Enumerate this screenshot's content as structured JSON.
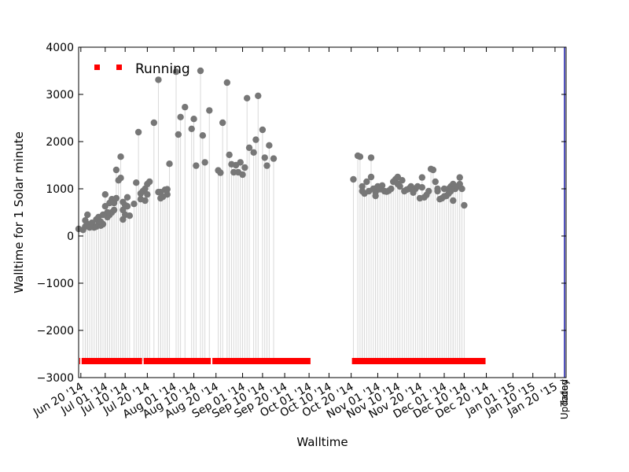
{
  "chart_data": {
    "type": "scatter",
    "title": "",
    "xlabel": "Walltime",
    "ylabel": "Walltime for 1 Solar minute",
    "xlim": [
      "2014-06-19",
      "2015-01-25"
    ],
    "ylim": [
      -3000,
      4000
    ],
    "yticks": [
      -3000,
      -2000,
      -1000,
      0,
      1000,
      2000,
      3000,
      4000
    ],
    "yticklabels": [
      "−3000",
      "−2000",
      "−1000",
      "0",
      "1000",
      "2000",
      "3000",
      "4000"
    ],
    "xticks": [
      "2014-06-20",
      "2014-07-01",
      "2014-07-10",
      "2014-07-20",
      "2014-08-01",
      "2014-08-10",
      "2014-08-20",
      "2014-09-01",
      "2014-09-10",
      "2014-09-20",
      "2014-10-01",
      "2014-10-10",
      "2014-10-20",
      "2014-11-01",
      "2014-11-10",
      "2014-11-20",
      "2014-12-01",
      "2014-12-10",
      "2014-12-20",
      "2015-01-01",
      "2015-01-10",
      "2015-01-20"
    ],
    "xticklabels": [
      "Jun 20 '14",
      "Jul 01 '14",
      "Jul 10 '14",
      "Jul 20 '14",
      "Aug 01 '14",
      "Aug 10 '14",
      "Aug 20 '14",
      "Sep 01 '14",
      "Sep 10 '14",
      "Sep 20 '14",
      "Oct 01 '14",
      "Oct 10 '14",
      "Oct 20 '14",
      "Nov 01 '14",
      "Nov 10 '14",
      "Nov 20 '14",
      "Dec 01 '14",
      "Dec 10 '14",
      "Dec 20 '14",
      "Jan 01 '15",
      "Jan 10 '15",
      "Jan 20 '15"
    ],
    "grid": false,
    "legend": {
      "entries": [
        {
          "name": "Running",
          "color": "#ff0000"
        }
      ],
      "placement": "top-left"
    },
    "annotations": [
      {
        "text": "Today",
        "x": "2015-01-25"
      },
      {
        "text": "Updated",
        "x": "2015-01-25"
      }
    ],
    "colors": {
      "points": "#777777",
      "stems": "#d9d9d9",
      "running": "#ff0000",
      "today_line": "#1a1aaa"
    },
    "running_y": -2650,
    "running_periods": [
      [
        "2014-06-19",
        "2014-06-20"
      ],
      [
        "2014-06-20",
        "2014-07-18"
      ],
      [
        "2014-07-18",
        "2014-08-18"
      ],
      [
        "2014-08-18",
        "2014-10-02"
      ],
      [
        "2014-10-20",
        "2014-12-20"
      ]
    ],
    "series": [
      {
        "name": "Running",
        "points": [
          [
            "2014-06-19",
            150
          ],
          [
            "2014-06-21",
            130
          ],
          [
            "2014-06-22",
            200
          ],
          [
            "2014-06-22",
            330
          ],
          [
            "2014-06-23",
            250
          ],
          [
            "2014-06-23",
            450
          ],
          [
            "2014-06-24",
            180
          ],
          [
            "2014-06-25",
            280
          ],
          [
            "2014-06-25",
            200
          ],
          [
            "2014-06-26",
            180
          ],
          [
            "2014-06-27",
            350
          ],
          [
            "2014-06-27",
            200
          ],
          [
            "2014-06-28",
            400
          ],
          [
            "2014-06-28",
            250
          ],
          [
            "2014-06-29",
            220
          ],
          [
            "2014-06-29",
            300
          ],
          [
            "2014-06-30",
            450
          ],
          [
            "2014-06-30",
            250
          ],
          [
            "2014-07-01",
            630
          ],
          [
            "2014-07-01",
            880
          ],
          [
            "2014-07-02",
            500
          ],
          [
            "2014-07-02",
            400
          ],
          [
            "2014-07-03",
            700
          ],
          [
            "2014-07-03",
            450
          ],
          [
            "2014-07-04",
            780
          ],
          [
            "2014-07-04",
            500
          ],
          [
            "2014-07-05",
            700
          ],
          [
            "2014-07-05",
            550
          ],
          [
            "2014-07-06",
            1400
          ],
          [
            "2014-07-06",
            800
          ],
          [
            "2014-07-07",
            1180
          ],
          [
            "2014-07-08",
            1680
          ],
          [
            "2014-07-08",
            1230
          ],
          [
            "2014-07-09",
            720
          ],
          [
            "2014-07-09",
            550
          ],
          [
            "2014-07-09",
            350
          ],
          [
            "2014-07-10",
            650
          ],
          [
            "2014-07-10",
            450
          ],
          [
            "2014-07-11",
            820
          ],
          [
            "2014-07-11",
            630
          ],
          [
            "2014-07-12",
            430
          ],
          [
            "2014-07-14",
            680
          ],
          [
            "2014-07-15",
            1130
          ],
          [
            "2014-07-16",
            2200
          ],
          [
            "2014-07-17",
            900
          ],
          [
            "2014-07-17",
            780
          ],
          [
            "2014-07-18",
            950
          ],
          [
            "2014-07-19",
            750
          ],
          [
            "2014-07-19",
            1000
          ],
          [
            "2014-07-20",
            880
          ],
          [
            "2014-07-20",
            1100
          ],
          [
            "2014-07-21",
            1150
          ],
          [
            "2014-07-23",
            2400
          ],
          [
            "2014-07-25",
            3310
          ],
          [
            "2014-07-25",
            930
          ],
          [
            "2014-07-26",
            800
          ],
          [
            "2014-07-26",
            930
          ],
          [
            "2014-07-27",
            830
          ],
          [
            "2014-07-28",
            980
          ],
          [
            "2014-07-29",
            990
          ],
          [
            "2014-07-29",
            880
          ],
          [
            "2014-07-30",
            1530
          ],
          [
            "2014-08-02",
            3480
          ],
          [
            "2014-08-03",
            2150
          ],
          [
            "2014-08-04",
            2520
          ],
          [
            "2014-08-06",
            2730
          ],
          [
            "2014-08-09",
            2270
          ],
          [
            "2014-08-10",
            2480
          ],
          [
            "2014-08-11",
            1490
          ],
          [
            "2014-08-13",
            3500
          ],
          [
            "2014-08-14",
            2130
          ],
          [
            "2014-08-15",
            1560
          ],
          [
            "2014-08-17",
            2660
          ],
          [
            "2014-08-21",
            1390
          ],
          [
            "2014-08-22",
            1340
          ],
          [
            "2014-08-23",
            2400
          ],
          [
            "2014-08-25",
            3250
          ],
          [
            "2014-08-26",
            1720
          ],
          [
            "2014-08-27",
            1520
          ],
          [
            "2014-08-28",
            1350
          ],
          [
            "2014-08-29",
            1500
          ],
          [
            "2014-08-30",
            1350
          ],
          [
            "2014-08-31",
            1560
          ],
          [
            "2014-09-01",
            1300
          ],
          [
            "2014-09-02",
            1450
          ],
          [
            "2014-09-03",
            2920
          ],
          [
            "2014-09-04",
            1870
          ],
          [
            "2014-09-06",
            1770
          ],
          [
            "2014-09-07",
            2040
          ],
          [
            "2014-09-08",
            2970
          ],
          [
            "2014-09-10",
            2250
          ],
          [
            "2014-09-11",
            1660
          ],
          [
            "2014-09-12",
            1490
          ],
          [
            "2014-09-13",
            1920
          ],
          [
            "2014-09-15",
            1640
          ],
          [
            "2014-10-21",
            1200
          ],
          [
            "2014-10-23",
            1700
          ],
          [
            "2014-10-24",
            1680
          ],
          [
            "2014-10-25",
            1050
          ],
          [
            "2014-10-25",
            950
          ],
          [
            "2014-10-26",
            900
          ],
          [
            "2014-10-27",
            1150
          ],
          [
            "2014-10-28",
            950
          ],
          [
            "2014-10-29",
            1660
          ],
          [
            "2014-10-29",
            1250
          ],
          [
            "2014-10-30",
            1000
          ],
          [
            "2014-10-31",
            930
          ],
          [
            "2014-10-31",
            850
          ],
          [
            "2014-11-01",
            1050
          ],
          [
            "2014-11-02",
            990
          ],
          [
            "2014-11-03",
            1070
          ],
          [
            "2014-11-04",
            950
          ],
          [
            "2014-11-05",
            940
          ],
          [
            "2014-11-06",
            960
          ],
          [
            "2014-11-07",
            1000
          ],
          [
            "2014-11-08",
            1150
          ],
          [
            "2014-11-09",
            1200
          ],
          [
            "2014-11-10",
            1100
          ],
          [
            "2014-11-10",
            1250
          ],
          [
            "2014-11-11",
            1050
          ],
          [
            "2014-11-12",
            1180
          ],
          [
            "2014-11-13",
            950
          ],
          [
            "2014-11-14",
            980
          ],
          [
            "2014-11-15",
            1000
          ],
          [
            "2014-11-16",
            1050
          ],
          [
            "2014-11-17",
            920
          ],
          [
            "2014-11-18",
            1000
          ],
          [
            "2014-11-19",
            1050
          ],
          [
            "2014-11-20",
            800
          ],
          [
            "2014-11-21",
            1030
          ],
          [
            "2014-11-21",
            1240
          ],
          [
            "2014-11-22",
            820
          ],
          [
            "2014-11-23",
            870
          ],
          [
            "2014-11-24",
            950
          ],
          [
            "2014-11-25",
            1420
          ],
          [
            "2014-11-26",
            1400
          ],
          [
            "2014-11-27",
            1150
          ],
          [
            "2014-11-28",
            950
          ],
          [
            "2014-11-28",
            1000
          ],
          [
            "2014-11-29",
            780
          ],
          [
            "2014-11-30",
            800
          ],
          [
            "2014-12-01",
            1000
          ],
          [
            "2014-12-01",
            840
          ],
          [
            "2014-12-02",
            850
          ],
          [
            "2014-12-03",
            900
          ],
          [
            "2014-12-03",
            1000
          ],
          [
            "2014-12-04",
            1050
          ],
          [
            "2014-12-04",
            950
          ],
          [
            "2014-12-05",
            750
          ],
          [
            "2014-12-05",
            1100
          ],
          [
            "2014-12-06",
            1000
          ],
          [
            "2014-12-07",
            1050
          ],
          [
            "2014-12-08",
            1240
          ],
          [
            "2014-12-08",
            1100
          ],
          [
            "2014-12-09",
            1000
          ],
          [
            "2014-12-10",
            650
          ]
        ]
      }
    ]
  }
}
